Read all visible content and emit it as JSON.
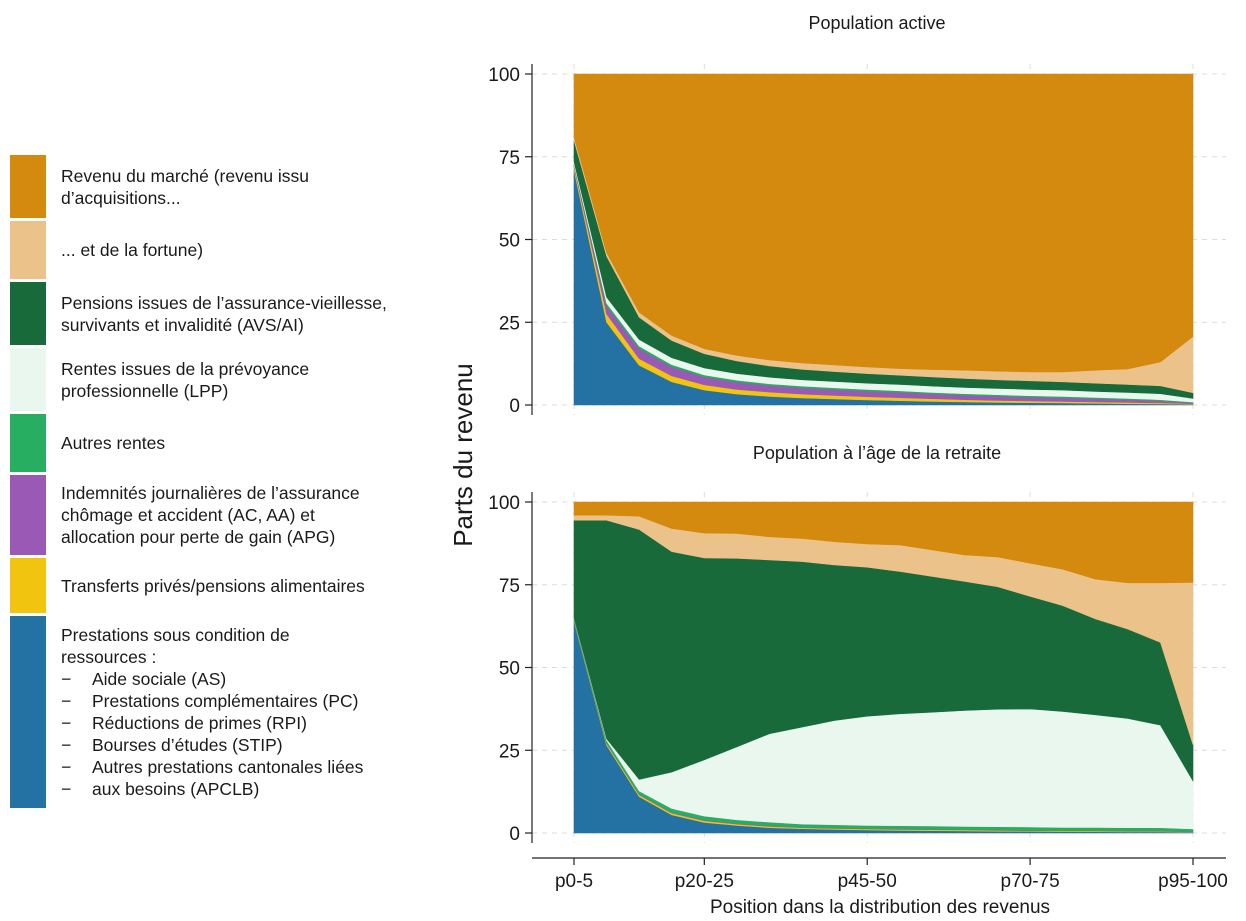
{
  "legend": {
    "items": [
      {
        "lines": [
          "Revenu du marché (revenu issu",
          "d’acquisitions..."
        ],
        "sub": [],
        "color": "#d4890f"
      },
      {
        "lines": [
          "... et de la fortune)"
        ],
        "sub": [],
        "color": "#ebc289"
      },
      {
        "lines": [
          "Pensions issues de l’assurance-vieillesse,",
          "survivants et invalidité (AVS/AI)"
        ],
        "sub": [],
        "color": "#196a3a"
      },
      {
        "lines": [
          "Rentes issues de la prévoyance",
          "professionnelle (LPP)"
        ],
        "sub": [],
        "color": "#e9f7ee"
      },
      {
        "lines": [
          "Autres rentes"
        ],
        "sub": [],
        "color": "#27ae60"
      },
      {
        "lines": [
          "Indemnités journalières de l’assurance",
          "chômage et accident (AC, AA) et",
          "allocation pour perte de gain (APG)"
        ],
        "sub": [],
        "color": "#9b59b6"
      },
      {
        "lines": [
          "Transferts privés/pensions alimentaires"
        ],
        "sub": [],
        "color": "#f1c40f"
      },
      {
        "lines": [
          "Prestations sous condition de",
          "ressources :"
        ],
        "sub": [
          "Aide sociale (AS)",
          "Prestations complémentaires (PC)",
          "Réductions de primes (RPI)",
          "Bourses d’études (STIP)",
          "Autres prestations cantonales liées",
          "aux besoins (APCLB)"
        ],
        "color": "#2471a3"
      }
    ]
  },
  "chart_data": {
    "type": "area",
    "stacked": true,
    "ylabel": "Parts du revenu",
    "xlabel": "Position dans la distribution des revenus",
    "x_tick_labels": [
      "p0-5",
      "p20-25",
      "p45-50",
      "p70-75",
      "p95-100"
    ],
    "x_tick_index": [
      0,
      4,
      9,
      14,
      19
    ],
    "n_groups": 20,
    "ylim": [
      0,
      100
    ],
    "y_ticks": [
      0,
      25,
      50,
      75,
      100
    ],
    "grid": true,
    "legend_position": "left",
    "series_order": [
      "Prestations sous condition de ressources",
      "Transferts privés/pensions alimentaires",
      "Indemnités journalières",
      "Autres rentes",
      "Rentes LPP",
      "Pensions AVS/AI",
      "Revenu de la fortune",
      "Revenu du marché (acquisitions)"
    ],
    "panels": [
      {
        "title": "Population active",
        "series": [
          {
            "color": "#2471a3",
            "values": [
              71,
              25,
              12,
              7,
              4.5,
              3.3,
              2.6,
              2.1,
              1.8,
              1.5,
              1.3,
              1.1,
              0.9,
              0.8,
              0.7,
              0.6,
              0.5,
              0.4,
              0.3,
              0.2
            ]
          },
          {
            "color": "#f1c40f",
            "values": [
              1,
              2.5,
              2,
              1.8,
              1.6,
              1.4,
              1.3,
              1.2,
              1.1,
              1,
              0.9,
              0.8,
              0.7,
              0.6,
              0.5,
              0.5,
              0.4,
              0.4,
              0.3,
              0.2
            ]
          },
          {
            "color": "#9b59b6",
            "values": [
              0.5,
              2.5,
              3,
              2.7,
              2.4,
              2.2,
              2,
              1.9,
              1.8,
              1.7,
              1.6,
              1.5,
              1.4,
              1.3,
              1.2,
              1.1,
              1,
              0.9,
              0.7,
              0.3
            ]
          },
          {
            "color": "#27ae60",
            "values": [
              0.3,
              0.8,
              0.8,
              0.7,
              0.6,
              0.6,
              0.5,
              0.5,
              0.5,
              0.5,
              0.5,
              0.4,
              0.4,
              0.4,
              0.4,
              0.4,
              0.4,
              0.3,
              0.3,
              0.2
            ]
          },
          {
            "color": "#e9f7ee",
            "values": [
              0.7,
              1.8,
              2,
              2.1,
              2.1,
              2,
              2,
              1.9,
              1.9,
              1.9,
              1.9,
              1.9,
              1.9,
              1.9,
              1.9,
              1.9,
              1.8,
              1.8,
              1.8,
              1.1
            ]
          },
          {
            "color": "#196a3a",
            "values": [
              6.5,
              12.4,
              6.7,
              5.2,
              4.3,
              3.8,
              3.4,
              3.2,
              3,
              2.9,
              2.8,
              2.8,
              2.7,
              2.6,
              2.6,
              2.5,
              2.5,
              2.4,
              2.4,
              1.7
            ]
          },
          {
            "color": "#ebc289",
            "values": [
              1,
              1,
              1.5,
              1.5,
              1.5,
              1.7,
              1.8,
              1.9,
              2,
              2,
              2,
              2.2,
              2.5,
              2.6,
              2.7,
              3,
              3.9,
              4.7,
              7.2,
              17
            ]
          },
          {
            "color": "#d4890f",
            "values": [
              19,
              54,
              72,
              79,
              83,
              85,
              86.4,
              87.3,
              87.9,
              88.5,
              89,
              89.3,
              89.5,
              89.8,
              90,
              90,
              89.5,
              89.1,
              87,
              79.3
            ]
          }
        ]
      },
      {
        "title": "Population à l’âge de la retraite",
        "series": [
          {
            "color": "#2471a3",
            "values": [
              64,
              26.5,
              11,
              5.5,
              3.2,
              2.3,
              1.6,
              1.3,
              1.1,
              0.9,
              0.8,
              0.7,
              0.6,
              0.5,
              0.5,
              0.4,
              0.4,
              0.3,
              0.3,
              0.2
            ]
          },
          {
            "color": "#f1c40f",
            "values": [
              0.3,
              0.5,
              0.5,
              0.5,
              0.5,
              0.4,
              0.4,
              0.3,
              0.3,
              0.3,
              0.3,
              0.3,
              0.3,
              0.3,
              0.2,
              0.2,
              0.2,
              0.2,
              0.2,
              0.1
            ]
          },
          {
            "color": "#9b59b6",
            "values": [
              0.1,
              0.2,
              0.2,
              0.2,
              0.2,
              0.2,
              0.2,
              0.1,
              0.1,
              0.1,
              0.1,
              0.1,
              0.1,
              0.1,
              0.1,
              0.1,
              0.1,
              0.1,
              0.1,
              0.1
            ]
          },
          {
            "color": "#27ae60",
            "values": [
              0.4,
              0.8,
              1,
              1.2,
              1.2,
              1.1,
              1.1,
              1,
              1,
              1,
              1,
              1,
              1,
              1,
              1,
              1,
              1,
              1,
              1,
              0.8
            ]
          },
          {
            "color": "#e9f7ee",
            "values": [
              0.2,
              0.5,
              3.5,
              11,
              17,
              22,
              26.7,
              29.3,
              31.5,
              33,
              33.8,
              34.4,
              35,
              35.5,
              35.7,
              35,
              34,
              33,
              31,
              14.5
            ]
          },
          {
            "color": "#196a3a",
            "values": [
              29.5,
              66,
              75.5,
              66.6,
              61,
              57,
              52.5,
              50,
              47,
              45,
              43,
              41,
              39,
              37,
              34,
              32,
              29,
              27,
              25,
              11
            ]
          },
          {
            "color": "#ebc289",
            "values": [
              1.5,
              1.5,
              4,
              7,
              7.5,
              7.5,
              7,
              7,
              7,
              7,
              8,
              8,
              8,
              9,
              10,
              11,
              12,
              14,
              18,
              49
            ]
          },
          {
            "color": "#d4890f",
            "values": [
              4,
              4,
              4.3,
              8,
              9.4,
              9.5,
              10.5,
              11,
              12,
              12.7,
              13,
              14.5,
              16,
              16.6,
              18.5,
              20.3,
              23.3,
              24.4,
              24.4,
              24.3
            ]
          }
        ]
      }
    ]
  }
}
